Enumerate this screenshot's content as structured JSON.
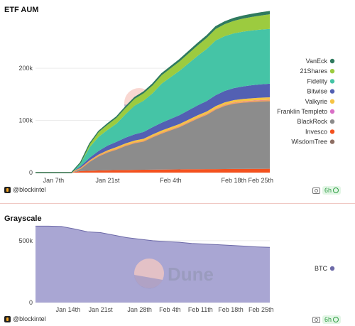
{
  "etf": {
    "title": "ETF AUM",
    "footer": "@blockintel",
    "freshness": "6h"
  },
  "grayscale": {
    "title": "Grayscale",
    "footer": "@blockintel",
    "freshness": "6h"
  },
  "watermark": "Dune",
  "colors": {
    "WisdomTree": "#8d6e63",
    "Invesco": "#f4511e",
    "BlackRock": "#8c8c8c",
    "Franklin Templeto": "#d96fc6",
    "Valkyrie": "#f6c344",
    "Bitwise": "#5360b3",
    "Fidelity": "#45c4a6",
    "21Shares": "#9ccb3f",
    "VanEck": "#2f7a5e",
    "BTC": "#a9a6d3",
    "BTC_line": "#6d6aa8",
    "BlackRock_edge": "#f3a45f"
  },
  "chart_data": [
    {
      "type": "area",
      "stacked": true,
      "title": "ETF AUM",
      "x": [
        "Jan 1",
        "Jan 4",
        "Jan 7",
        "Jan 10",
        "Jan 12",
        "Jan 14",
        "Jan 17",
        "Jan 19",
        "Jan 21",
        "Jan 23",
        "Jan 25",
        "Jan 27",
        "Jan 29",
        "Jan 31",
        "Feb 2",
        "Feb 4",
        "Feb 6",
        "Feb 8",
        "Feb 10",
        "Feb 12",
        "Feb 14",
        "Feb 16",
        "Feb 18",
        "Feb 20",
        "Feb 22",
        "Feb 24",
        "Feb 27"
      ],
      "x_tick_labels": [
        "Jan 7th",
        "Jan 21st",
        "Feb 4th",
        "Feb 18th",
        "Feb 25th"
      ],
      "x_tick_index": [
        2,
        8,
        15,
        22,
        25
      ],
      "y_ticks": [
        "0",
        "100k",
        "200k"
      ],
      "y_tick_values": [
        0,
        100000,
        200000
      ],
      "ylim": [
        0,
        290000
      ],
      "legend_position": "right",
      "legend": [
        "VanEck",
        "21Shares",
        "Fidelity",
        "Bitwise",
        "Valkyrie",
        "Franklin Templeto",
        "BlackRock",
        "Invesco",
        "WisdomTree"
      ],
      "series": [
        {
          "name": "WisdomTree",
          "values": [
            0,
            0,
            0,
            0,
            0,
            0,
            0,
            0,
            0,
            0,
            0,
            0,
            0,
            0,
            0,
            0,
            0,
            0,
            0,
            0,
            0,
            0,
            0,
            0,
            0,
            0,
            0
          ]
        },
        {
          "name": "Invesco",
          "values": [
            0,
            0,
            0,
            0,
            0,
            3000,
            3500,
            4000,
            4500,
            5000,
            5000,
            5200,
            5400,
            5600,
            5800,
            6000,
            6200,
            6400,
            6500,
            6600,
            6700,
            6800,
            6900,
            7000,
            7100,
            7200,
            7300
          ]
        },
        {
          "name": "BlackRock",
          "values": [
            0,
            0,
            0,
            0,
            0,
            5000,
            18000,
            28000,
            35000,
            40000,
            47000,
            52000,
            55000,
            63000,
            70000,
            76000,
            82000,
            90000,
            98000,
            105000,
            115000,
            122000,
            126000,
            128000,
            129000,
            130000,
            130500
          ]
        },
        {
          "name": "Franklin Templeto",
          "values": [
            0,
            0,
            0,
            0,
            0,
            200,
            400,
            600,
            800,
            1000,
            1000,
            1000,
            1100,
            1100,
            1200,
            1200,
            1300,
            1300,
            1400,
            1400,
            1500,
            1500,
            1600,
            1600,
            1700,
            1700,
            1800
          ]
        },
        {
          "name": "Valkyrie",
          "values": [
            0,
            0,
            0,
            0,
            0,
            800,
            1500,
            2000,
            2500,
            3000,
            3000,
            3200,
            3400,
            3500,
            3600,
            3700,
            3800,
            3900,
            4000,
            4100,
            4200,
            4300,
            4400,
            4500,
            4600,
            4700,
            4800
          ]
        },
        {
          "name": "Bitwise",
          "values": [
            0,
            0,
            0,
            0,
            0,
            3000,
            5000,
            7000,
            9000,
            10000,
            11000,
            12000,
            13000,
            14000,
            15000,
            16000,
            17000,
            18000,
            19000,
            20000,
            21000,
            22000,
            23000,
            24000,
            25000,
            25500,
            26000
          ]
        },
        {
          "name": "Fidelity",
          "values": [
            0,
            0,
            0,
            0,
            0,
            5000,
            20000,
            27000,
            30000,
            35000,
            45000,
            55000,
            60000,
            65000,
            75000,
            80000,
            85000,
            90000,
            95000,
            100000,
            105000,
            105000,
            105000,
            105000,
            105000,
            105000,
            105000
          ]
        },
        {
          "name": "21Shares",
          "values": [
            0,
            0,
            0,
            0,
            0,
            2000,
            6000,
            9000,
            10000,
            11000,
            12000,
            13000,
            14000,
            15000,
            16000,
            17000,
            18000,
            19000,
            20000,
            21000,
            22000,
            23000,
            24000,
            25000,
            26000,
            27000,
            28000
          ]
        },
        {
          "name": "VanEck",
          "values": [
            0,
            0,
            0,
            0,
            0,
            500,
            1000,
            1500,
            2000,
            2200,
            2400,
            2600,
            2800,
            3000,
            3200,
            3400,
            3600,
            3800,
            4000,
            4200,
            4400,
            4600,
            4800,
            5000,
            5200,
            5400,
            5600
          ]
        }
      ]
    },
    {
      "type": "area",
      "title": "Grayscale",
      "x": [
        "Jan 11",
        "Jan 13",
        "Jan 15",
        "Jan 17",
        "Jan 19",
        "Jan 21",
        "Jan 23",
        "Jan 25",
        "Jan 28",
        "Jan 31",
        "Feb 3",
        "Feb 6",
        "Feb 9",
        "Feb 12",
        "Feb 15",
        "Feb 18",
        "Feb 21",
        "Feb 24",
        "Feb 27"
      ],
      "x_tick_labels": [
        "Jan 14th",
        "Jan 21st",
        "Jan 28th",
        "Feb 4th",
        "Feb 11th",
        "Feb 18th",
        "Feb 25th"
      ],
      "x_tick_index": [
        2.5,
        5,
        8,
        10.33,
        12.67,
        15,
        17.33
      ],
      "y_ticks": [
        "0",
        "500k"
      ],
      "y_tick_values": [
        0,
        500000
      ],
      "ylim": [
        0,
        660000
      ],
      "legend_position": "right",
      "legend": [
        "BTC"
      ],
      "series": [
        {
          "name": "BTC",
          "values": [
            618000,
            618000,
            615000,
            595000,
            572000,
            565000,
            545000,
            525000,
            512000,
            500000,
            493000,
            488000,
            478000,
            473000,
            468000,
            462000,
            456000,
            450000,
            446000
          ]
        }
      ]
    }
  ]
}
